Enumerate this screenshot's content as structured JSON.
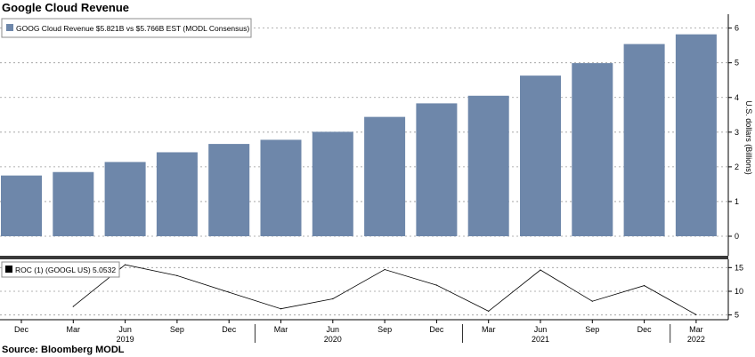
{
  "title": "Google Cloud Revenue",
  "source": "Source: Bloomberg MODL",
  "chart_data": [
    {
      "type": "bar",
      "legend": "GOOG Cloud Revenue $5.821B vs $5.766B EST (MODL Consensus)",
      "ylabel": "U.S. dollars (Billions)",
      "ylim": [
        0,
        6.4
      ],
      "yticks": [
        0,
        1,
        2,
        3,
        4,
        5,
        6
      ],
      "color": "#6e87aa",
      "categories": [
        "Dec 2018",
        "Mar 2019",
        "Jun 2019",
        "Sep 2019",
        "Dec 2019",
        "Mar 2020",
        "Jun 2020",
        "Sep 2020",
        "Dec 2020",
        "Mar 2021",
        "Jun 2021",
        "Sep 2021",
        "Dec 2021",
        "Mar 2022"
      ],
      "values": [
        1.75,
        1.85,
        2.14,
        2.42,
        2.66,
        2.78,
        3.01,
        3.44,
        3.83,
        4.05,
        4.63,
        4.99,
        5.54,
        5.82
      ],
      "grid": true
    },
    {
      "type": "line",
      "legend": "ROC (1) (GOOGL US) 5.0532",
      "ylim": [
        4,
        16
      ],
      "yticks": [
        5,
        10,
        15
      ],
      "color": "#000000",
      "x": [
        "Mar 2019",
        "Jun 2019",
        "Sep 2019",
        "Dec 2019",
        "Mar 2020",
        "Jun 2020",
        "Sep 2020",
        "Dec 2020",
        "Mar 2021",
        "Jun 2021",
        "Sep 2021",
        "Dec 2021",
        "Mar 2022"
      ],
      "values": [
        6.8,
        15.6,
        13.3,
        9.8,
        6.3,
        8.4,
        14.6,
        11.3,
        5.8,
        14.5,
        7.9,
        11.2,
        5.05
      ],
      "grid": true
    }
  ],
  "x_axis": {
    "months": [
      "Dec",
      "Mar",
      "Jun",
      "Sep",
      "Dec",
      "Mar",
      "Jun",
      "Sep",
      "Dec",
      "Mar",
      "Jun",
      "Sep",
      "Dec",
      "Mar"
    ],
    "years": [
      {
        "label": "2019",
        "index": 2
      },
      {
        "label": "2020",
        "index": 6
      },
      {
        "label": "2021",
        "index": 10
      },
      {
        "label": "2022",
        "index": 13
      }
    ]
  }
}
